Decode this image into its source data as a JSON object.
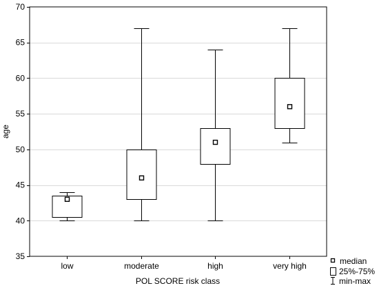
{
  "chart_data": {
    "type": "boxplot",
    "xlabel": "POL SCORE risk class",
    "ylabel": "age",
    "ylim": [
      35,
      70
    ],
    "yticks": [
      35,
      40,
      45,
      50,
      55,
      60,
      65,
      70
    ],
    "grid": "horizontal",
    "legend_position": "bottom-right",
    "categories": [
      "low",
      "moderate",
      "high",
      "very high"
    ],
    "boxes": [
      {
        "label": "low",
        "min": 40,
        "q1": 40.5,
        "median": 43,
        "q3": 43.5,
        "max": 44
      },
      {
        "label": "moderate",
        "min": 40,
        "q1": 43,
        "median": 46,
        "q3": 50,
        "max": 67
      },
      {
        "label": "high",
        "min": 40,
        "q1": 48,
        "median": 51,
        "q3": 53,
        "max": 64
      },
      {
        "label": "very high",
        "min": 51,
        "q1": 53,
        "median": 56,
        "q3": 60,
        "max": 67
      }
    ],
    "legend": {
      "median": "median",
      "box": "25%-75%",
      "whisker": "min-max"
    }
  }
}
